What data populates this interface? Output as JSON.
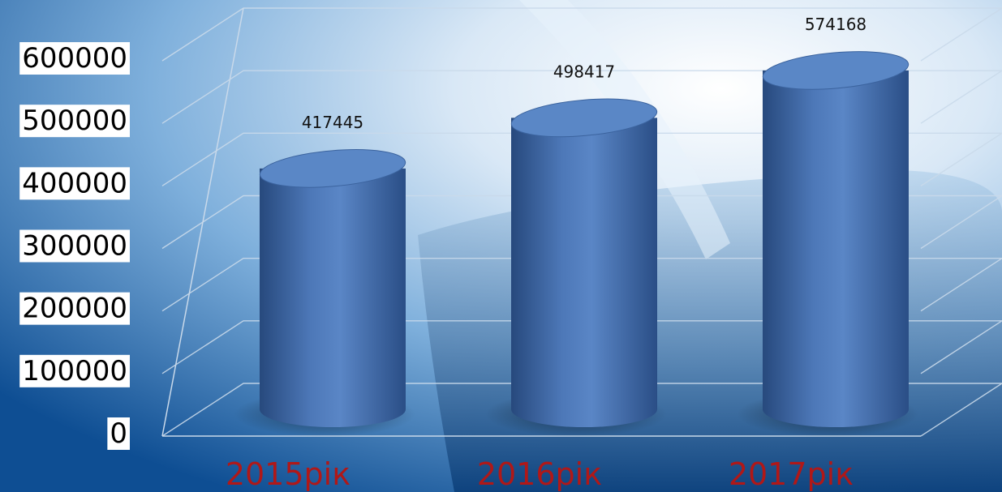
{
  "chart_data": {
    "type": "bar",
    "style": "3d-cylinder",
    "categories": [
      "2015рік",
      "2016рік",
      "2017рік"
    ],
    "values": [
      417445,
      498417,
      574168
    ],
    "data_labels": [
      "417445",
      "498417",
      "574168"
    ],
    "y_ticks": [
      "0",
      "100000",
      "200000",
      "300000",
      "400000",
      "500000",
      "600000"
    ],
    "ylim": [
      0,
      600000
    ],
    "title": "",
    "xlabel": "",
    "ylabel": "",
    "grid": true,
    "legend": "none",
    "colors": {
      "bar": "#4a74b4",
      "bar_top": "#5a87c6",
      "category_label": "#b01818",
      "background": "#2f6fae"
    }
  }
}
